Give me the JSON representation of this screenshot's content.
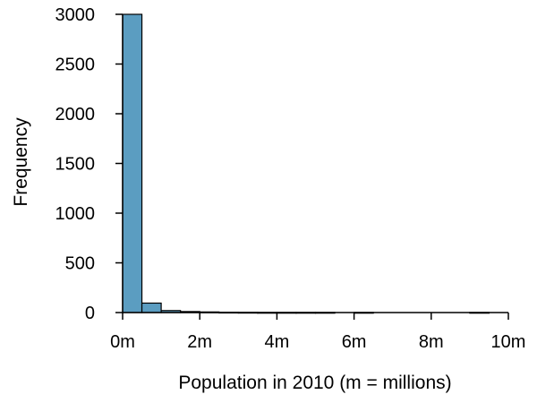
{
  "chart_data": {
    "type": "bar",
    "title": "",
    "xlabel": "Population in 2010 (m = millions)",
    "ylabel": "Frequency",
    "x_ticks": [
      {
        "value": 0,
        "label": "0m"
      },
      {
        "value": 2,
        "label": "2m"
      },
      {
        "value": 4,
        "label": "4m"
      },
      {
        "value": 6,
        "label": "6m"
      },
      {
        "value": 8,
        "label": "8m"
      },
      {
        "value": 10,
        "label": "10m"
      }
    ],
    "y_ticks": [
      {
        "value": 0,
        "label": "0"
      },
      {
        "value": 500,
        "label": "500"
      },
      {
        "value": 1000,
        "label": "1000"
      },
      {
        "value": 1500,
        "label": "1500"
      },
      {
        "value": 2000,
        "label": "2000"
      },
      {
        "value": 2500,
        "label": "2500"
      },
      {
        "value": 3000,
        "label": "3000"
      }
    ],
    "xlim": [
      0,
      10
    ],
    "ylim": [
      0,
      3000
    ],
    "bin_width": 0.5,
    "bins": [
      {
        "x0": 0.0,
        "x1": 0.5,
        "count": 3000
      },
      {
        "x0": 0.5,
        "x1": 1.0,
        "count": 95
      },
      {
        "x0": 1.0,
        "x1": 1.5,
        "count": 20
      },
      {
        "x0": 1.5,
        "x1": 2.0,
        "count": 10
      },
      {
        "x0": 2.0,
        "x1": 2.5,
        "count": 6
      },
      {
        "x0": 2.5,
        "x1": 3.0,
        "count": 3
      },
      {
        "x0": 3.0,
        "x1": 3.5,
        "count": 2
      },
      {
        "x0": 3.5,
        "x1": 4.0,
        "count": 1
      },
      {
        "x0": 4.0,
        "x1": 4.5,
        "count": 1
      },
      {
        "x0": 4.5,
        "x1": 5.0,
        "count": 1
      },
      {
        "x0": 5.0,
        "x1": 5.5,
        "count": 1
      },
      {
        "x0": 5.5,
        "x1": 6.0,
        "count": 0
      },
      {
        "x0": 6.0,
        "x1": 6.5,
        "count": 1
      },
      {
        "x0": 6.5,
        "x1": 7.0,
        "count": 0
      },
      {
        "x0": 7.0,
        "x1": 7.5,
        "count": 0
      },
      {
        "x0": 7.5,
        "x1": 8.0,
        "count": 0
      },
      {
        "x0": 8.0,
        "x1": 8.5,
        "count": 0
      },
      {
        "x0": 8.5,
        "x1": 9.0,
        "count": 0
      },
      {
        "x0": 9.0,
        "x1": 9.5,
        "count": 1
      },
      {
        "x0": 9.5,
        "x1": 10.0,
        "count": 0
      }
    ],
    "bar_color": "#5B9DC1",
    "bar_edge_color": "#000000",
    "grid": false,
    "legend": "none"
  }
}
